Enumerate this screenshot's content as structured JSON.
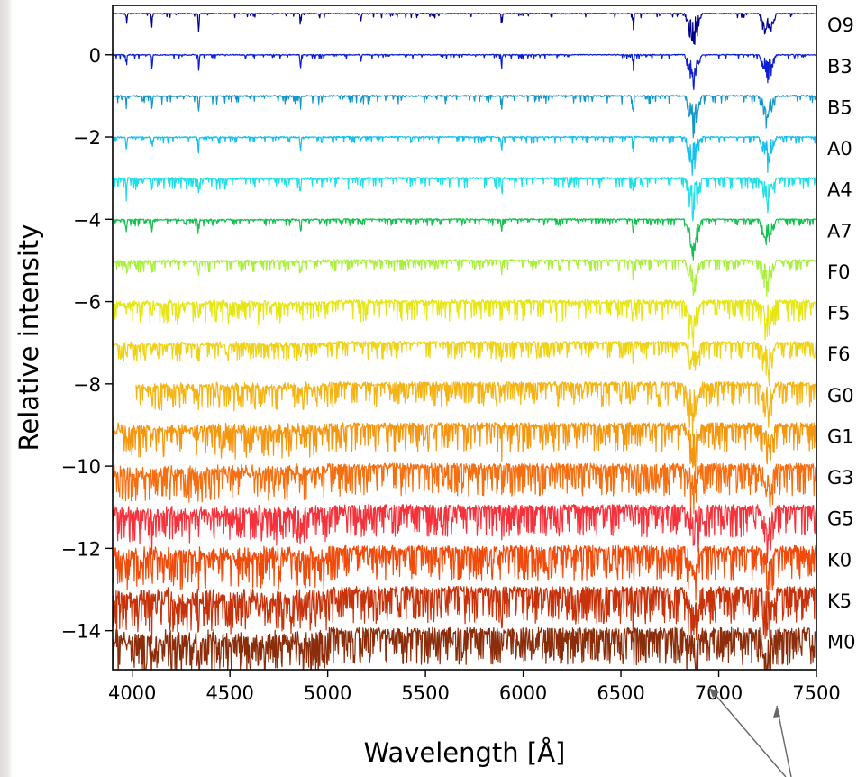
{
  "chart_data": {
    "type": "line",
    "title": "",
    "xlabel": "Wavelength [Å]",
    "ylabel": "Relative intensity",
    "xlim": [
      3900,
      7500
    ],
    "ylim": [
      -14.95,
      1.2
    ],
    "xticks": [
      4000,
      4500,
      5000,
      5500,
      6000,
      6500,
      7000,
      7500
    ],
    "yticks": [
      0,
      -2,
      -4,
      -6,
      -8,
      -10,
      -12,
      -14
    ],
    "ytick_labels": [
      "0",
      "−2",
      "−4",
      "−6",
      "−8",
      "−10",
      "−12",
      "−14"
    ],
    "grid": false,
    "series": [
      {
        "name": "O9",
        "offset": 1,
        "color": "#00008b",
        "noise": 0.05,
        "start": 3900
      },
      {
        "name": "B3",
        "offset": 0,
        "color": "#0a1ed2",
        "noise": 0.05,
        "start": 3900
      },
      {
        "name": "B5",
        "offset": -1,
        "color": "#1496c8",
        "noise": 0.09,
        "start": 3900
      },
      {
        "name": "A0",
        "offset": -2,
        "color": "#14c0ee",
        "noise": 0.07,
        "start": 3900
      },
      {
        "name": "A4",
        "offset": -3,
        "color": "#1ee0e6",
        "noise": 0.12,
        "start": 3900
      },
      {
        "name": "A7",
        "offset": -4,
        "color": "#14c050",
        "noise": 0.07,
        "start": 3900
      },
      {
        "name": "F0",
        "offset": -5,
        "color": "#a8f03c",
        "noise": 0.12,
        "start": 3900
      },
      {
        "name": "F5",
        "offset": -6,
        "color": "#e6e614",
        "noise": 0.22,
        "start": 3900
      },
      {
        "name": "F6",
        "offset": -7,
        "color": "#f0d214",
        "noise": 0.18,
        "start": 3900
      },
      {
        "name": "G0",
        "offset": -8,
        "color": "#f5b414",
        "noise": 0.25,
        "start": 4020
      },
      {
        "name": "G1",
        "offset": -9,
        "color": "#f5960f",
        "noise": 0.3,
        "start": 3900
      },
      {
        "name": "G3",
        "offset": -10,
        "color": "#f56e0f",
        "noise": 0.33,
        "start": 3900
      },
      {
        "name": "G5",
        "offset": -11,
        "color": "#f5323c",
        "noise": 0.33,
        "start": 3900
      },
      {
        "name": "K0",
        "offset": -12,
        "color": "#f04b0a",
        "noise": 0.36,
        "start": 3900
      },
      {
        "name": "K5",
        "offset": -13,
        "color": "#c8320a",
        "noise": 0.38,
        "start": 3900
      },
      {
        "name": "M0",
        "offset": -14,
        "color": "#8b2d0a",
        "noise": 0.38,
        "start": 3900
      }
    ],
    "absorption_lines": [
      {
        "x": 3970,
        "depth": 0.3
      },
      {
        "x": 4101,
        "depth": 0.3
      },
      {
        "x": 4340,
        "depth": 0.35
      },
      {
        "x": 4861,
        "depth": 0.3
      },
      {
        "x": 5170,
        "depth": 0.15
      },
      {
        "x": 5890,
        "depth": 0.3
      },
      {
        "x": 6563,
        "depth": 0.4
      },
      {
        "x": 6870,
        "depth": 0.7
      },
      {
        "x": 7250,
        "depth": 0.6
      }
    ]
  }
}
